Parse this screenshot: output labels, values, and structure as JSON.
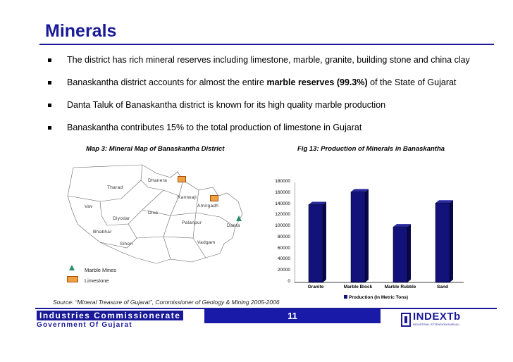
{
  "slide": {
    "title": "Minerals",
    "bullets": [
      {
        "text": "The district has rich mineral reserves including limestone, marble, granite, building stone and china clay",
        "bold": "",
        "after": ""
      },
      {
        "text": "Banaskantha district accounts for almost the entire ",
        "bold": "marble reserves (99.3%)",
        "after": " of the State of Gujarat"
      },
      {
        "text": "Danta Taluk of Banaskantha district is known for its high quality marble production",
        "bold": "",
        "after": ""
      },
      {
        "text": "Banaskantha contributes 15% to the total production of limestone in Gujarat",
        "bold": "",
        "after": ""
      }
    ],
    "source": "Source: “Mineral Treasure of Gujarat”, Commissioner of Geology & Mining 2005-2006",
    "page_number": "11"
  },
  "map": {
    "caption": "Map 3: Mineral Map of Banaskantha District",
    "places": [
      "Dhanera",
      "Tharad",
      "Kantwaji",
      "Vav",
      "Amirgadh",
      "Disa",
      "Diyodar",
      "Palanpur",
      "Danta",
      "Bhabhar",
      "Sihori",
      "Vadgam"
    ],
    "legend": [
      {
        "label": "Marble Mines",
        "icon": "triangle-icon",
        "color": "#2d8c6e"
      },
      {
        "label": "Limestone",
        "icon": "square-icon",
        "color": "#f0a040"
      }
    ]
  },
  "chart_data": {
    "type": "bar",
    "title": "Fig 13: Production of Minerals in Banaskantha",
    "categories": [
      "Granite",
      "Marble Block",
      "Marble Rubble",
      "Sand"
    ],
    "series": [
      {
        "name": "Production (In Metric Tons)",
        "values": [
          140000,
          163000,
          100000,
          143000
        ],
        "color": "#12127a"
      }
    ],
    "ylim": [
      0,
      180000
    ],
    "yticks": [
      "180000",
      "160000",
      "140000",
      "120000",
      "100000",
      "80000",
      "60000",
      "40000",
      "20000",
      "0"
    ],
    "legend_position": "bottom"
  },
  "footer": {
    "org_line1": "Industries Commissionerate",
    "org_line2": "Government Of Gujarat",
    "logo_text": "INDEXTb",
    "logo_sub": "INDUSTRIAL EXTENSION BUREAU"
  },
  "colors": {
    "brand": "#1a1a99",
    "bar": "#12127a",
    "limestone": "#f0a040",
    "marble": "#2d8c6e"
  }
}
